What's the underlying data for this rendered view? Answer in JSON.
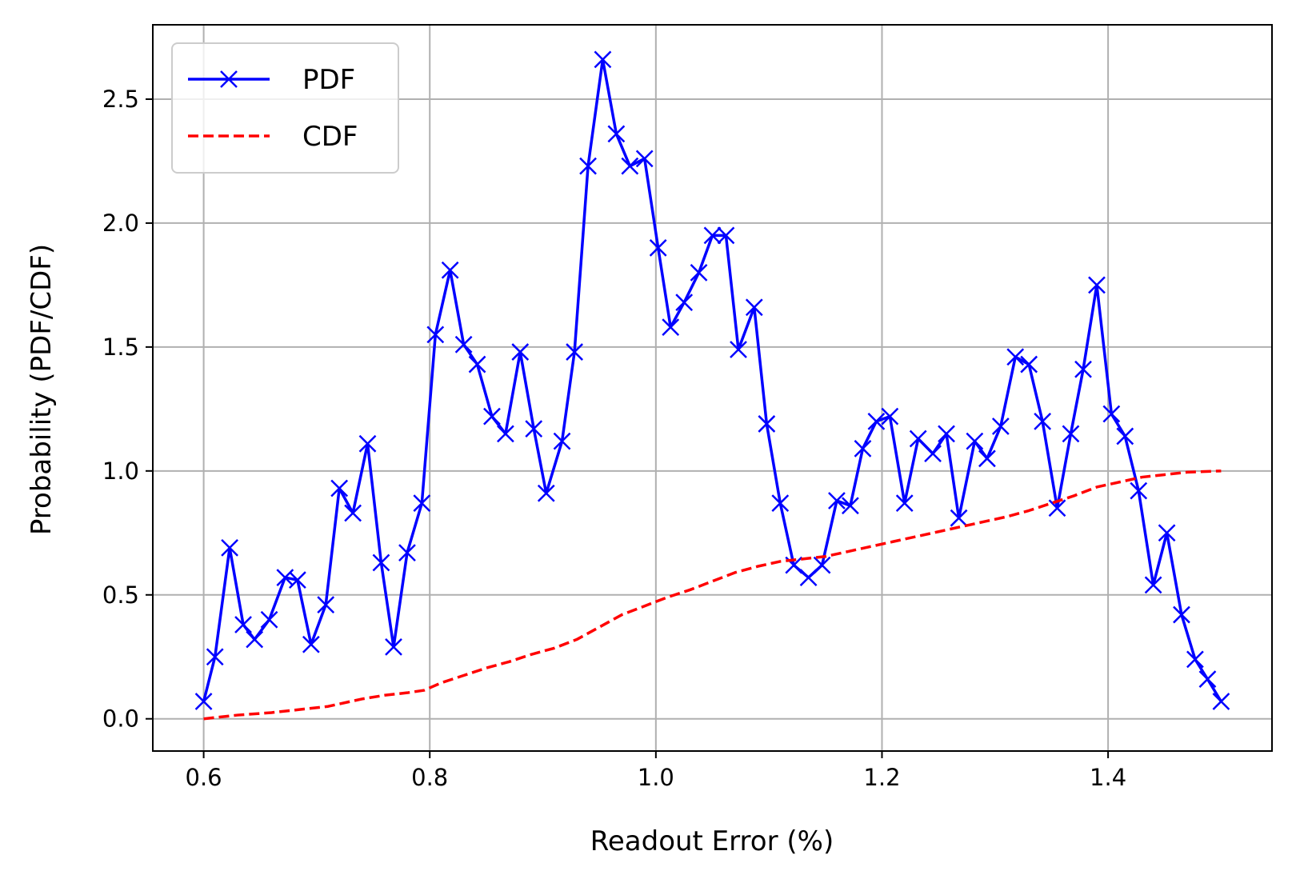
{
  "chart_data": {
    "type": "line",
    "xlabel": "Readout Error (%)",
    "ylabel": "Probability (PDF/CDF)",
    "xlim": [
      0.555,
      1.545
    ],
    "ylim": [
      -0.13,
      2.8
    ],
    "xticks": [
      0.6,
      0.8,
      1.0,
      1.2,
      1.4
    ],
    "xtick_labels": [
      "0.6",
      "0.8",
      "1.0",
      "1.2",
      "1.4"
    ],
    "yticks": [
      0.0,
      0.5,
      1.0,
      1.5,
      2.0,
      2.5
    ],
    "ytick_labels": [
      "0.0",
      "0.5",
      "1.0",
      "1.5",
      "2.0",
      "2.5"
    ],
    "grid": true,
    "legend_position": "top-left",
    "x": [
      0.6,
      0.6102,
      0.6205,
      0.6307,
      0.641,
      0.6512,
      0.6614,
      0.6717,
      0.6819,
      0.6922,
      0.7024,
      0.7126,
      0.7229,
      0.7331,
      0.7434,
      0.7536,
      0.7638,
      0.7741,
      0.7843,
      0.7945,
      0.8048,
      0.815,
      0.8253,
      0.8355,
      0.8457,
      0.856,
      0.8662,
      0.8765,
      0.8867,
      0.8969,
      0.9072,
      0.9174,
      0.9277,
      0.9379,
      0.9481,
      0.9584,
      0.9686,
      0.9789,
      0.9891,
      0.9993,
      1.0096,
      1.0198,
      1.0301,
      1.0403,
      1.0505,
      1.0608,
      1.071,
      1.0813,
      1.0915,
      1.1017,
      1.112,
      1.1222,
      1.1325,
      1.1427,
      1.1529,
      1.1632,
      1.1734,
      1.1837,
      1.1939,
      1.2041,
      1.2144,
      1.2246,
      1.2349,
      1.2451,
      1.2553,
      1.2656,
      1.2758,
      1.2861,
      1.2963,
      1.3065,
      1.3168,
      1.327,
      1.3373,
      1.3475,
      1.3577,
      1.368,
      1.3782,
      1.3885,
      1.3987,
      1.4089,
      1.4192,
      1.4294,
      1.4397,
      1.4499,
      1.4601,
      1.4704,
      1.4806,
      1.4909,
      1.5011
    ],
    "series": [
      {
        "name": "PDF",
        "color": "#0000ff",
        "style": "solid",
        "marker": "x",
        "x": [
          0.6,
          0.61,
          0.623,
          0.635,
          0.645,
          0.658,
          0.672,
          0.683,
          0.695,
          0.708,
          0.72,
          0.732,
          0.745,
          0.757,
          0.768,
          0.78,
          0.793,
          0.805,
          0.818,
          0.83,
          0.842,
          0.855,
          0.867,
          0.88,
          0.892,
          0.903,
          0.917,
          0.928,
          0.94,
          0.953,
          0.965,
          0.977,
          0.99,
          1.002,
          1.013,
          1.025,
          1.038,
          1.05,
          1.062,
          1.073,
          1.087,
          1.098,
          1.11,
          1.122,
          1.135,
          1.147,
          1.16,
          1.172,
          1.183,
          1.195,
          1.207,
          1.22,
          1.232,
          1.245,
          1.257,
          1.268,
          1.282,
          1.293,
          1.305,
          1.318,
          1.33,
          1.342,
          1.355,
          1.367,
          1.378,
          1.39,
          1.403,
          1.415,
          1.427,
          1.44,
          1.452,
          1.465,
          1.477,
          1.488,
          1.5
        ],
        "values": [
          0.07,
          0.25,
          0.69,
          0.38,
          0.32,
          0.4,
          0.57,
          0.56,
          0.3,
          0.46,
          0.93,
          0.83,
          1.11,
          0.63,
          0.29,
          0.67,
          0.87,
          1.55,
          1.81,
          1.51,
          1.43,
          1.22,
          1.15,
          1.48,
          1.17,
          0.91,
          1.12,
          1.48,
          2.23,
          2.66,
          2.36,
          2.23,
          2.26,
          1.9,
          1.58,
          1.68,
          1.8,
          1.95,
          1.95,
          1.49,
          1.66,
          1.19,
          0.87,
          0.62,
          0.57,
          0.62,
          0.88,
          0.86,
          1.09,
          1.2,
          1.22,
          0.87,
          1.13,
          1.07,
          1.15,
          0.81,
          1.12,
          1.05,
          1.18,
          1.46,
          1.43,
          1.2,
          0.85,
          1.15,
          1.41,
          1.75,
          1.23,
          1.14,
          0.92,
          0.54,
          0.75,
          0.42,
          0.24,
          0.16,
          0.07
        ]
      },
      {
        "name": "CDF",
        "color": "#ff0000",
        "style": "dashed",
        "marker": "none",
        "x": [
          0.6,
          0.63,
          0.66,
          0.68,
          0.71,
          0.72,
          0.74,
          0.76,
          0.78,
          0.795,
          0.81,
          0.83,
          0.85,
          0.87,
          0.89,
          0.91,
          0.93,
          0.95,
          0.97,
          0.99,
          1.01,
          1.03,
          1.05,
          1.07,
          1.09,
          1.11,
          1.13,
          1.15,
          1.17,
          1.19,
          1.21,
          1.23,
          1.25,
          1.27,
          1.29,
          1.31,
          1.33,
          1.35,
          1.37,
          1.39,
          1.41,
          1.43,
          1.45,
          1.47,
          1.5
        ],
        "values": [
          0.0,
          0.015,
          0.025,
          0.035,
          0.05,
          0.06,
          0.08,
          0.095,
          0.105,
          0.115,
          0.145,
          0.175,
          0.205,
          0.23,
          0.26,
          0.285,
          0.32,
          0.37,
          0.42,
          0.455,
          0.49,
          0.52,
          0.555,
          0.59,
          0.615,
          0.635,
          0.645,
          0.655,
          0.675,
          0.695,
          0.715,
          0.735,
          0.755,
          0.775,
          0.795,
          0.815,
          0.84,
          0.87,
          0.9,
          0.935,
          0.955,
          0.975,
          0.985,
          0.995,
          1.0
        ]
      }
    ]
  }
}
